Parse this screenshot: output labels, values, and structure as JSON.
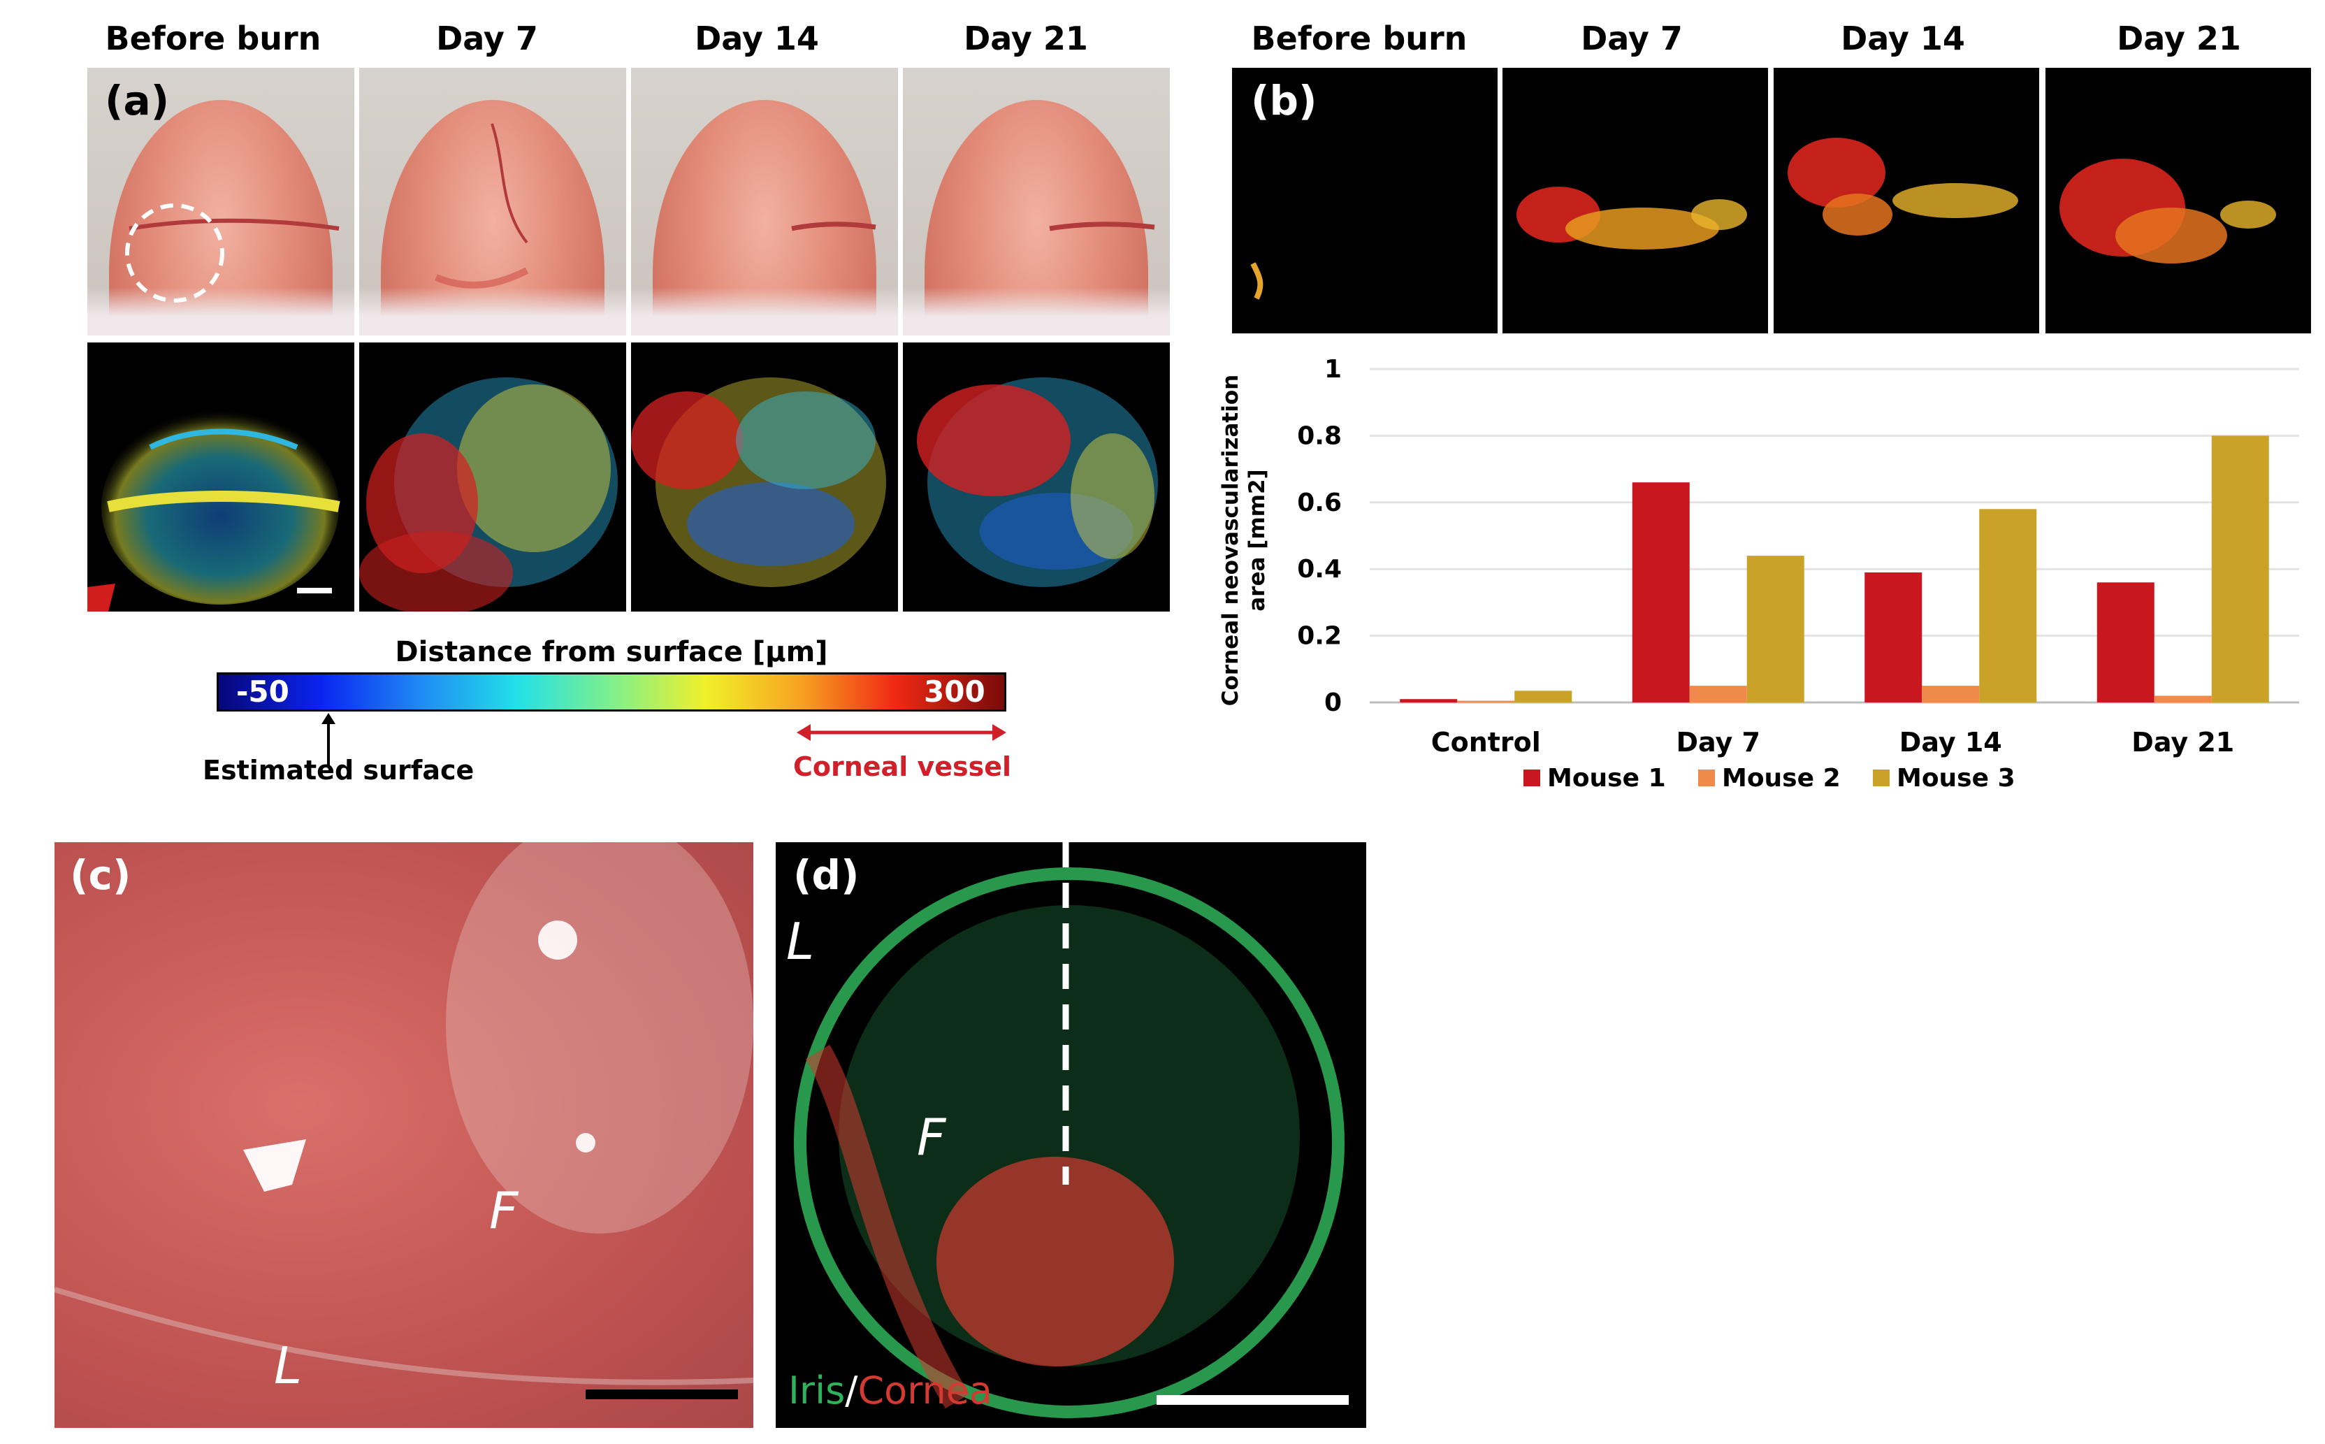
{
  "panel_a": {
    "label": "(a)",
    "columns": [
      "Before burn",
      "Day 7",
      "Day 14",
      "Day 21"
    ],
    "colorbar": {
      "title": "Distance from surface [µm]",
      "min_label": "-50",
      "max_label": "300",
      "estimated_surface": "Estimated surface",
      "corneal_vessel": "Corneal vessel"
    }
  },
  "panel_b": {
    "label": "(b)",
    "columns": [
      "Before burn",
      "Day 7",
      "Day 14",
      "Day 21"
    ]
  },
  "panel_c": {
    "label": "(c)",
    "F": "F",
    "L": "L"
  },
  "panel_d": {
    "label": "(d)",
    "L": "L",
    "F": "F",
    "iris": "Iris",
    "slash": "/",
    "cornea": "Cornea"
  },
  "colors": {
    "mouse1": "#c8171e",
    "mouse2": "#ef8a4a",
    "mouse3": "#c9a227",
    "corneal_vessel_text": "#d0202a",
    "iris_green": "#2fb35a",
    "cornea_red": "#d23a32"
  },
  "chart_data": {
    "type": "bar",
    "ylabel": "Corneal neovascularization area [mm2]",
    "ylabel_line1": "Corneal neovascularization",
    "ylabel_line2": "area [mm2]",
    "categories": [
      "Control",
      "Day 7",
      "Day 14",
      "Day 21"
    ],
    "ylim": [
      0,
      1
    ],
    "yticks": [
      "0",
      "0.2",
      "0.4",
      "0.6",
      "0.8",
      "1"
    ],
    "grid": true,
    "legend_position": "bottom",
    "series": [
      {
        "name": "Mouse 1",
        "values": [
          0.01,
          0.66,
          0.39,
          0.36
        ]
      },
      {
        "name": "Mouse 2",
        "values": [
          0.005,
          0.05,
          0.05,
          0.02
        ]
      },
      {
        "name": "Mouse 3",
        "values": [
          0.035,
          0.44,
          0.58,
          0.8
        ]
      }
    ]
  }
}
